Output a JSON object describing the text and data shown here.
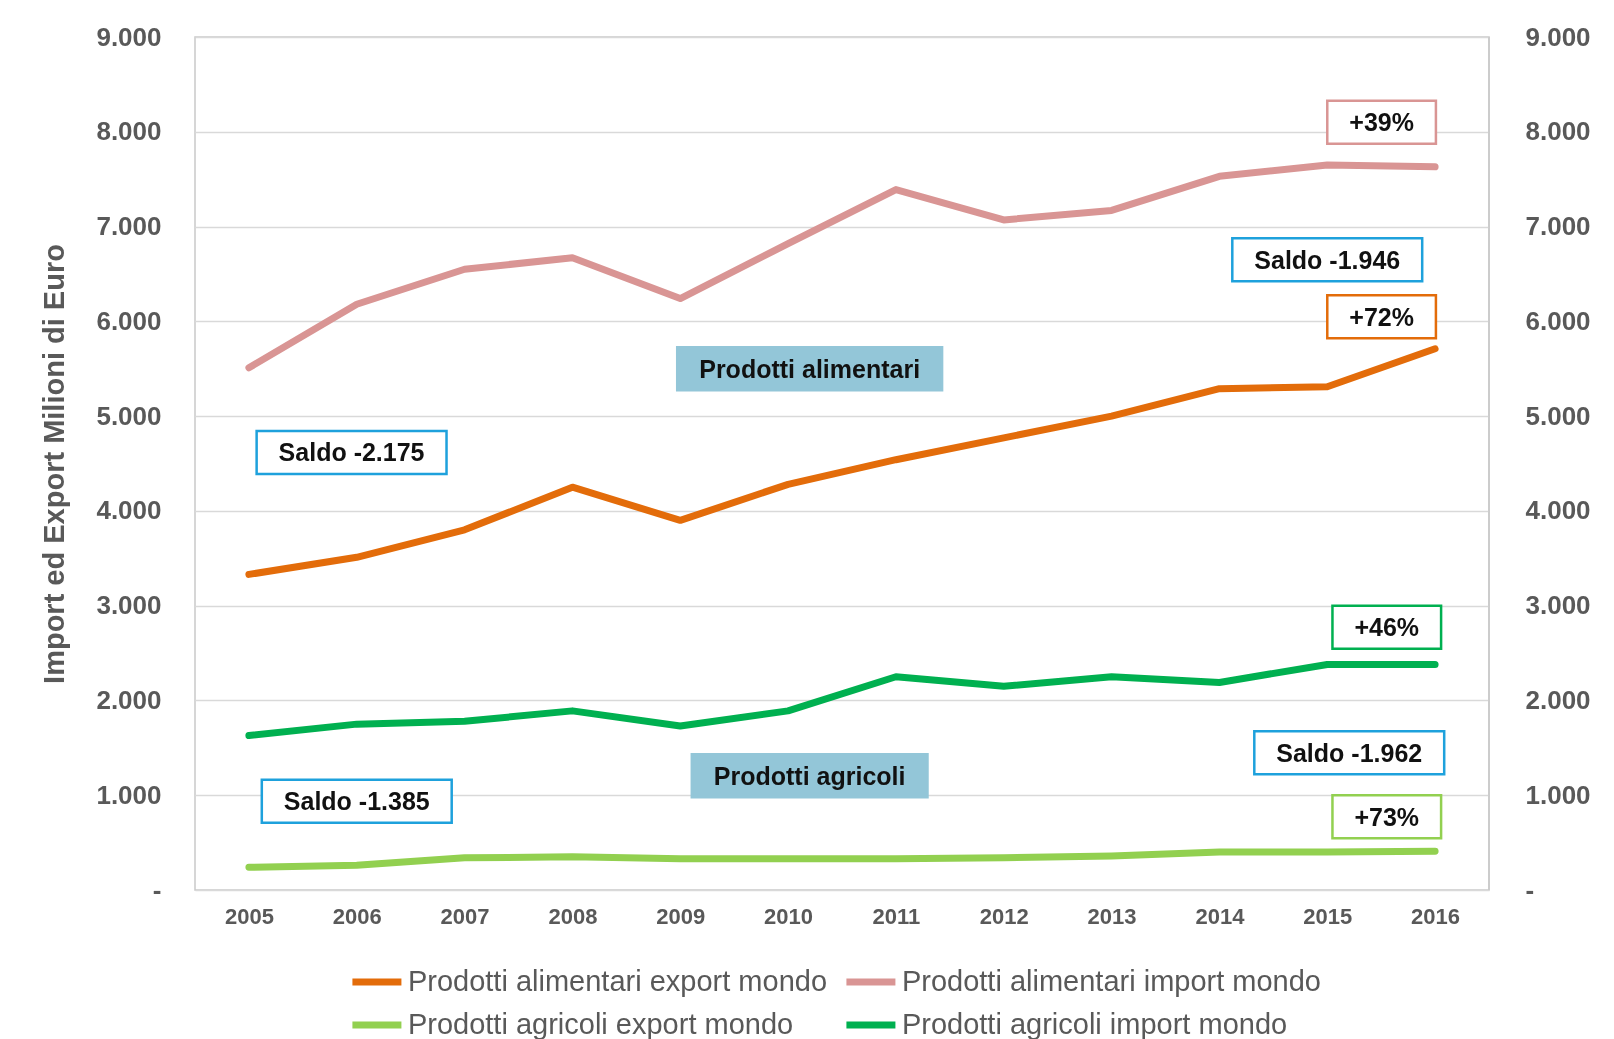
{
  "chart_data": {
    "type": "line",
    "ylabel": "Import ed Export Milioni di Euro",
    "x": [
      2005,
      2006,
      2007,
      2008,
      2009,
      2010,
      2011,
      2012,
      2013,
      2014,
      2015,
      2016
    ],
    "xlim": [
      2004.5,
      2016.5
    ],
    "xticks": [
      2005,
      2006,
      2007,
      2008,
      2009,
      2010,
      2011,
      2012,
      2013,
      2014,
      2015,
      2016
    ],
    "ylim": [
      0,
      9000
    ],
    "yticks": [
      {
        "value": 0,
        "label": "-"
      },
      {
        "value": 1000,
        "label": "1.000"
      },
      {
        "value": 2000,
        "label": "2.000"
      },
      {
        "value": 3000,
        "label": "3.000"
      },
      {
        "value": 4000,
        "label": "4.000"
      },
      {
        "value": 5000,
        "label": "5.000"
      },
      {
        "value": 6000,
        "label": "6.000"
      },
      {
        "value": 7000,
        "label": "7.000"
      },
      {
        "value": 8000,
        "label": "8.000"
      },
      {
        "value": 9000,
        "label": "9.000"
      }
    ],
    "y2lim": [
      0,
      9000
    ],
    "y2ticks": [
      {
        "value": 0,
        "label": "-"
      },
      {
        "value": 1000,
        "label": "1.000"
      },
      {
        "value": 2000,
        "label": "2.000"
      },
      {
        "value": 3000,
        "label": "3.000"
      },
      {
        "value": 4000,
        "label": "4.000"
      },
      {
        "value": 5000,
        "label": "5.000"
      },
      {
        "value": 6000,
        "label": "6.000"
      },
      {
        "value": 7000,
        "label": "7.000"
      },
      {
        "value": 8000,
        "label": "8.000"
      },
      {
        "value": 9000,
        "label": "9.000"
      }
    ],
    "grid": "y",
    "legend": "bottom",
    "line_style": "solid",
    "series": [
      {
        "name": "Prodotti alimentari export mondo",
        "color": "#e36c0a",
        "values": [
          3330,
          3510,
          3800,
          4250,
          3900,
          4280,
          4540,
          4770,
          5000,
          5290,
          5310,
          5710
        ]
      },
      {
        "name": "Prodotti alimentari import mondo",
        "color": "#d99594",
        "values": [
          5510,
          6180,
          6550,
          6670,
          6240,
          6820,
          7390,
          7070,
          7170,
          7530,
          7650,
          7630
        ]
      },
      {
        "name": "Prodotti agricoli export mondo",
        "color": "#92d050",
        "values": [
          240,
          260,
          340,
          350,
          330,
          330,
          330,
          340,
          360,
          400,
          400,
          410
        ]
      },
      {
        "name": "Prodotti agricoli import mondo",
        "color": "#00b050",
        "values": [
          1630,
          1750,
          1780,
          1890,
          1730,
          1890,
          2250,
          2150,
          2250,
          2190,
          2380,
          2380
        ]
      }
    ],
    "annotations": [
      "+39%",
      "Saldo -1.946",
      "+72%",
      "Prodotti alimentari",
      "Saldo -2.175",
      "+46%",
      "Saldo -1.962",
      "Prodotti agricoli",
      "Saldo -1.385",
      "+73%"
    ]
  }
}
